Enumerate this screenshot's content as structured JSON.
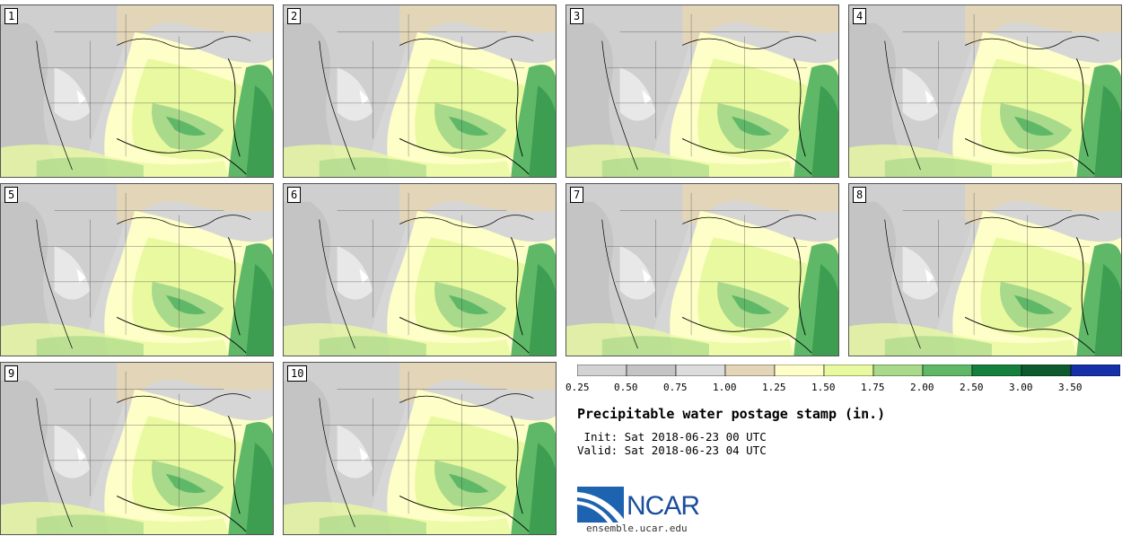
{
  "panels": [
    {
      "label": "1"
    },
    {
      "label": "2"
    },
    {
      "label": "3"
    },
    {
      "label": "4"
    },
    {
      "label": "5"
    },
    {
      "label": "6"
    },
    {
      "label": "7"
    },
    {
      "label": "8"
    },
    {
      "label": "9"
    },
    {
      "label": "10"
    }
  ],
  "colorbar": {
    "colors": [
      "#d3d3d3",
      "#c4c4c4",
      "#dcdcdc",
      "#e2d5b8",
      "#fefec8",
      "#e9f9a0",
      "#a9d98a",
      "#5fb868",
      "#15803d",
      "#0d5a2e",
      "#1530a8"
    ],
    "tick_labels": [
      "0.25",
      "0.50",
      "0.75",
      "1.00",
      "1.25",
      "1.50",
      "1.75",
      "2.00",
      "2.50",
      "3.00",
      "3.50"
    ]
  },
  "title": "Precipitable water postage stamp (in.)",
  "init_line": " Init: Sat 2018-06-23 00 UTC",
  "valid_line": "Valid: Sat 2018-06-23 04 UTC",
  "logo_text": "NCAR",
  "url": "ensemble.ucar.edu"
}
